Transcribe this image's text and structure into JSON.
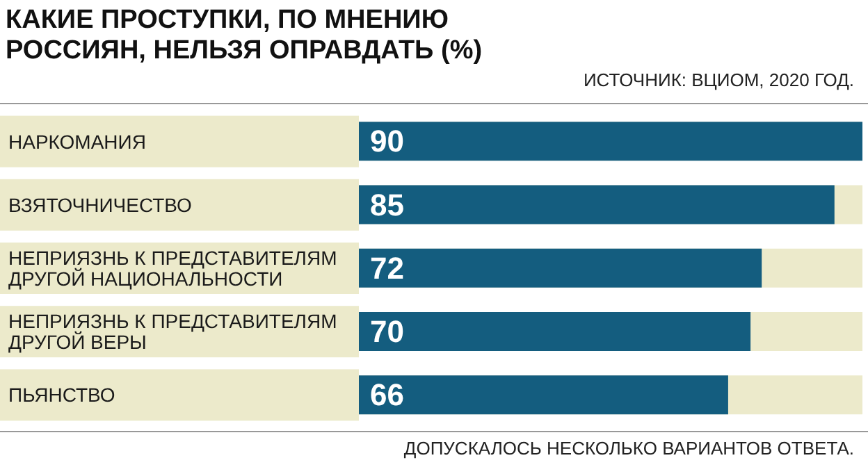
{
  "chart_data": {
    "type": "bar",
    "orientation": "horizontal",
    "title": "КАКИЕ ПРОСТУПКИ, ПО МНЕНИЮ РОССИЯН, НЕЛЬЗЯ ОПРАВДАТЬ (%)",
    "subtitle": "ИСТОЧНИК: ВЦИОМ, 2020 ГОД.",
    "annotations": [
      "ДОПУСКАЛОСЬ НЕСКОЛЬКО ВАРИАНТОВ ОТВЕТА."
    ],
    "categories": [
      "НАРКОМАНИЯ",
      "ВЗЯТОЧНИЧЕСТВО",
      "НЕПРИЯЗНЬ К ПРЕДСТАВИТЕЛЯМ ДРУГОЙ НАЦИОНАЛЬНОСТИ",
      "НЕПРИЯЗНЬ К ПРЕДСТАВИТЕЛЯМ ДРУГОЙ ВЕРЫ",
      "ПЬЯНСТВО"
    ],
    "values": [
      90,
      85,
      72,
      70,
      66
    ],
    "color": "#145d7f",
    "data_labels": true
  }
}
